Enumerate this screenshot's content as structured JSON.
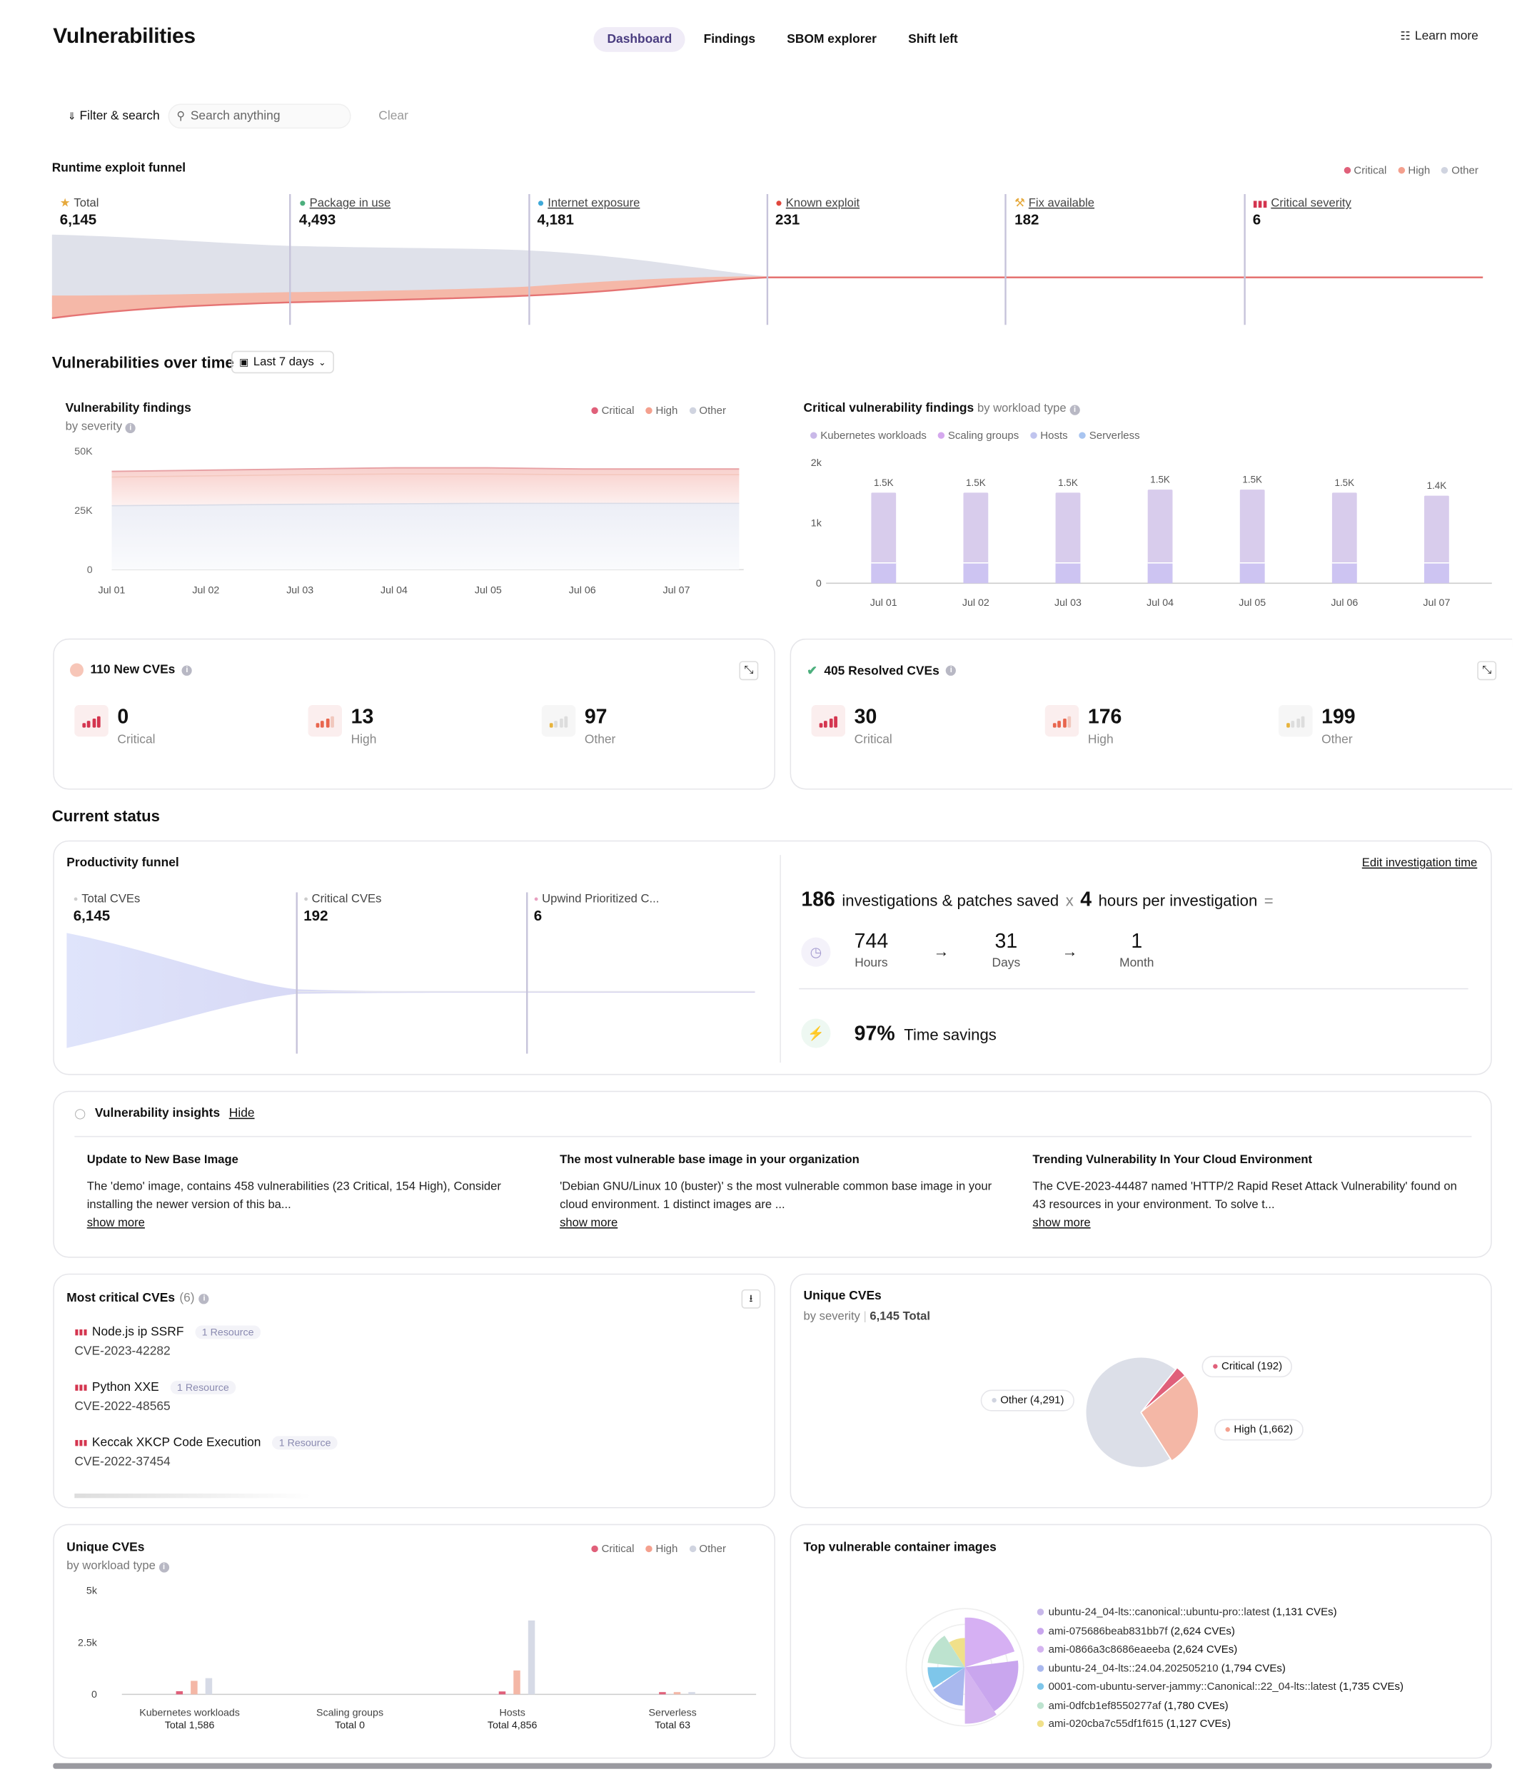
{
  "header": {
    "title": "Vulnerabilities",
    "tabs": [
      "Dashboard",
      "Findings",
      "SBOM explorer",
      "Shift left"
    ],
    "learn_more": "Learn more"
  },
  "filter": {
    "label": "Filter & search",
    "placeholder": "Search anything",
    "clear": "Clear"
  },
  "funnel": {
    "title": "Runtime exploit funnel",
    "legend": [
      "Critical",
      "High",
      "Other"
    ],
    "stages": [
      {
        "label": "Total",
        "value": "6,145"
      },
      {
        "label": "Package in use",
        "value": "4,493"
      },
      {
        "label": "Internet exposure",
        "value": "4,181"
      },
      {
        "label": "Known exploit",
        "value": "231"
      },
      {
        "label": "Fix available",
        "value": "182"
      },
      {
        "label": "Critical severity",
        "value": "6"
      }
    ]
  },
  "over_time": {
    "title": "Vulnerabilities over time",
    "range": "Last 7 days"
  },
  "findings_chart": {
    "title": "Vulnerability findings",
    "subtitle": "by severity",
    "legend": [
      "Critical",
      "High",
      "Other"
    ],
    "yticks": [
      "50K",
      "25K",
      "0"
    ],
    "xticks": [
      "Jul 01",
      "Jul 02",
      "Jul 03",
      "Jul 04",
      "Jul 05",
      "Jul 06",
      "Jul 07"
    ]
  },
  "critical_chart": {
    "title": "Critical vulnerability findings",
    "title_suffix": "by workload type",
    "legend": [
      "Kubernetes workloads",
      "Scaling groups",
      "Hosts",
      "Serverless"
    ],
    "yticks": [
      "2k",
      "1k",
      "0"
    ]
  },
  "new_cves": {
    "title": "110 New CVEs",
    "items": [
      {
        "value": "0",
        "label": "Critical"
      },
      {
        "value": "13",
        "label": "High"
      },
      {
        "value": "97",
        "label": "Other"
      }
    ]
  },
  "resolved_cves": {
    "title": "405 Resolved CVEs",
    "items": [
      {
        "value": "30",
        "label": "Critical"
      },
      {
        "value": "176",
        "label": "High"
      },
      {
        "value": "199",
        "label": "Other"
      }
    ]
  },
  "current": {
    "title": "Current status"
  },
  "productivity": {
    "title": "Productivity funnel",
    "edit": "Edit investigation time",
    "stages": [
      {
        "label": "Total CVEs",
        "value": "6,145"
      },
      {
        "label": "Critical CVEs",
        "value": "192"
      },
      {
        "label": "Upwind Prioritized C...",
        "value": "6"
      }
    ],
    "investigations": "186",
    "inv_text": "investigations & patches saved",
    "x": "x",
    "hours": "4",
    "hours_text": "hours per investigation",
    "eq": "=",
    "conv": [
      {
        "value": "744",
        "unit": "Hours"
      },
      {
        "value": "31",
        "unit": "Days"
      },
      {
        "value": "1",
        "unit": "Month"
      }
    ],
    "savings": "97%",
    "savings_text": "Time savings"
  },
  "insights": {
    "title": "Vulnerability insights",
    "hide": "Hide",
    "show_more": "show more",
    "items": [
      {
        "title": "Update to New Base Image",
        "body": "The 'demo' image, contains 458 vulnerabilities (23 Critical, 154 High), Consider installing the newer version of this ba..."
      },
      {
        "title": "The most vulnerable base image in your organization",
        "body": "'Debian GNU/Linux 10 (buster)' s the most vulnerable common base image in your cloud environment. 1 distinct images are ..."
      },
      {
        "title": "Trending Vulnerability In Your Cloud Environment",
        "body": "The CVE-2023-44487 named 'HTTP/2 Rapid Reset Attack Vulnerability' found on 43 resources in your environment. To solve t..."
      }
    ]
  },
  "most_critical": {
    "title": "Most critical CVEs",
    "count": "(6)",
    "items": [
      {
        "name": "Node.js ip SSRF",
        "res": "1 Resource",
        "id": "CVE-2023-42282"
      },
      {
        "name": "Python XXE",
        "res": "1 Resource",
        "id": "CVE-2022-48565"
      },
      {
        "name": "Keccak XKCP Code Execution",
        "res": "1 Resource",
        "id": "CVE-2022-37454"
      }
    ]
  },
  "unique_sev": {
    "title": "Unique CVEs",
    "subtitle": "by severity",
    "total": "6,145 Total",
    "labels": [
      "Critical (192)",
      "High (1,662)",
      "Other (4,291)"
    ]
  },
  "unique_work": {
    "title": "Unique CVEs",
    "subtitle": "by workload type",
    "legend": [
      "Critical",
      "High",
      "Other"
    ],
    "yticks": [
      "5k",
      "2.5k",
      "0"
    ],
    "groups": [
      {
        "name": "Kubernetes workloads",
        "total": "Total 1,586"
      },
      {
        "name": "Scaling groups",
        "total": "Total 0"
      },
      {
        "name": "Hosts",
        "total": "Total 4,856"
      },
      {
        "name": "Serverless",
        "total": "Total 63"
      }
    ]
  },
  "top_images": {
    "title": "Top vulnerable container images",
    "items": [
      {
        "name": "ubuntu-24_04-lts::canonical::ubuntu-pro::latest",
        "count": "(1,131 CVEs)",
        "color": "#c8b8ea"
      },
      {
        "name": "ami-075686beab831bb7f",
        "count": "(2,624 CVEs)",
        "color": "#c9a6ee"
      },
      {
        "name": "ami-0866a3c8686eaeeba",
        "count": "(2,624 CVEs)",
        "color": "#d4b4f0"
      },
      {
        "name": "ubuntu-24_04-lts::24.04.202505210",
        "count": "(1,794 CVEs)",
        "color": "#a9b8ee"
      },
      {
        "name": "0001-com-ubuntu-server-jammy::Canonical::22_04-lts::latest",
        "count": "(1,735 CVEs)",
        "color": "#7ec6ea"
      },
      {
        "name": "ami-0dfcb1ef8550277af",
        "count": "(1,780 CVEs)",
        "color": "#bde3cf"
      },
      {
        "name": "ami-020cba7c55df1f615",
        "count": "(1,127 CVEs)",
        "color": "#f0e08a"
      }
    ]
  },
  "chart_data": [
    {
      "type": "area",
      "title": "Vulnerability findings",
      "x": [
        "Jul 01",
        "Jul 02",
        "Jul 03",
        "Jul 04",
        "Jul 05",
        "Jul 06",
        "Jul 07"
      ],
      "ylim": [
        0,
        50000
      ],
      "series": [
        {
          "name": "Critical",
          "values": [
            41500,
            42000,
            42500,
            43000,
            43000,
            42500,
            42500
          ]
        },
        {
          "name": "High",
          "values": [
            41000,
            41500,
            42000,
            42300,
            42300,
            42000,
            42000
          ]
        },
        {
          "name": "Other",
          "values": [
            27000,
            27300,
            27600,
            27800,
            28000,
            28000,
            28000
          ]
        }
      ]
    },
    {
      "type": "bar",
      "title": "Critical vulnerability findings",
      "categories": [
        "Jul 01",
        "Jul 02",
        "Jul 03",
        "Jul 04",
        "Jul 05",
        "Jul 06",
        "Jul 07"
      ],
      "ylim": [
        0,
        2000
      ],
      "data_labels": [
        "1.5K",
        "1.5K",
        "1.5K",
        "1.5K",
        "1.5K",
        "1.5K",
        "1.4K"
      ],
      "values": [
        1500,
        1500,
        1500,
        1550,
        1550,
        1500,
        1450
      ]
    },
    {
      "type": "pie",
      "title": "Unique CVEs",
      "labels": [
        "Critical",
        "High",
        "Other"
      ],
      "values": [
        192,
        1662,
        4291
      ]
    },
    {
      "type": "bar",
      "title": "Unique CVEs",
      "categories": [
        "Kubernetes workloads",
        "Scaling groups",
        "Hosts",
        "Serverless"
      ],
      "ylim": [
        0,
        5000
      ],
      "series": [
        {
          "name": "Critical",
          "values": [
            150,
            0,
            140,
            20
          ]
        },
        {
          "name": "High",
          "values": [
            650,
            0,
            1150,
            20
          ]
        },
        {
          "name": "Other",
          "values": [
            780,
            0,
            3560,
            23
          ]
        }
      ]
    }
  ]
}
